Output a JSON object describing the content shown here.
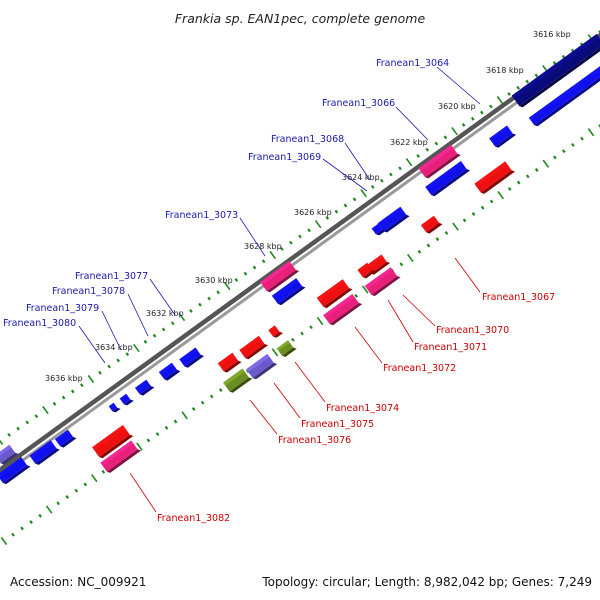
{
  "title": "Frankia sp. EAN1pec, complete genome",
  "footer": {
    "accession": "Accession: NC_009921",
    "stats": "Topology: circular; Length: 8,982,042 bp; Genes: 7,249"
  },
  "colors": {
    "forward_cds": "#1010ee",
    "reverse_cds": "#ee1010",
    "pink_gene": "#e8207a",
    "purple_gene": "#6a5acd",
    "olive_gene": "#6b8e23",
    "navy_gene": "#0a0a7a",
    "backbone": "#888888",
    "ticks": "#1f8a1f",
    "forward_label": "#1a1aaa",
    "reverse_label": "#cc0000"
  },
  "kbp_labels": [
    "3616 kbp",
    "3618 kbp",
    "3620 kbp",
    "3622 kbp",
    "3624 kbp",
    "3626 kbp",
    "3628 kbp",
    "3630 kbp",
    "3632 kbp",
    "3634 kbp",
    "3636 kbp"
  ],
  "forward_genes": [
    "Franean1_3064",
    "Franean1_3066",
    "Franean1_3068",
    "Franean1_3069",
    "Franean1_3073",
    "Franean1_3077",
    "Franean1_3078",
    "Franean1_3079",
    "Franean1_3080"
  ],
  "reverse_genes": [
    "Franean1_3067",
    "Franean1_3070",
    "Franean1_3071",
    "Franean1_3072",
    "Franean1_3074",
    "Franean1_3075",
    "Franean1_3076",
    "Franean1_3082"
  ]
}
